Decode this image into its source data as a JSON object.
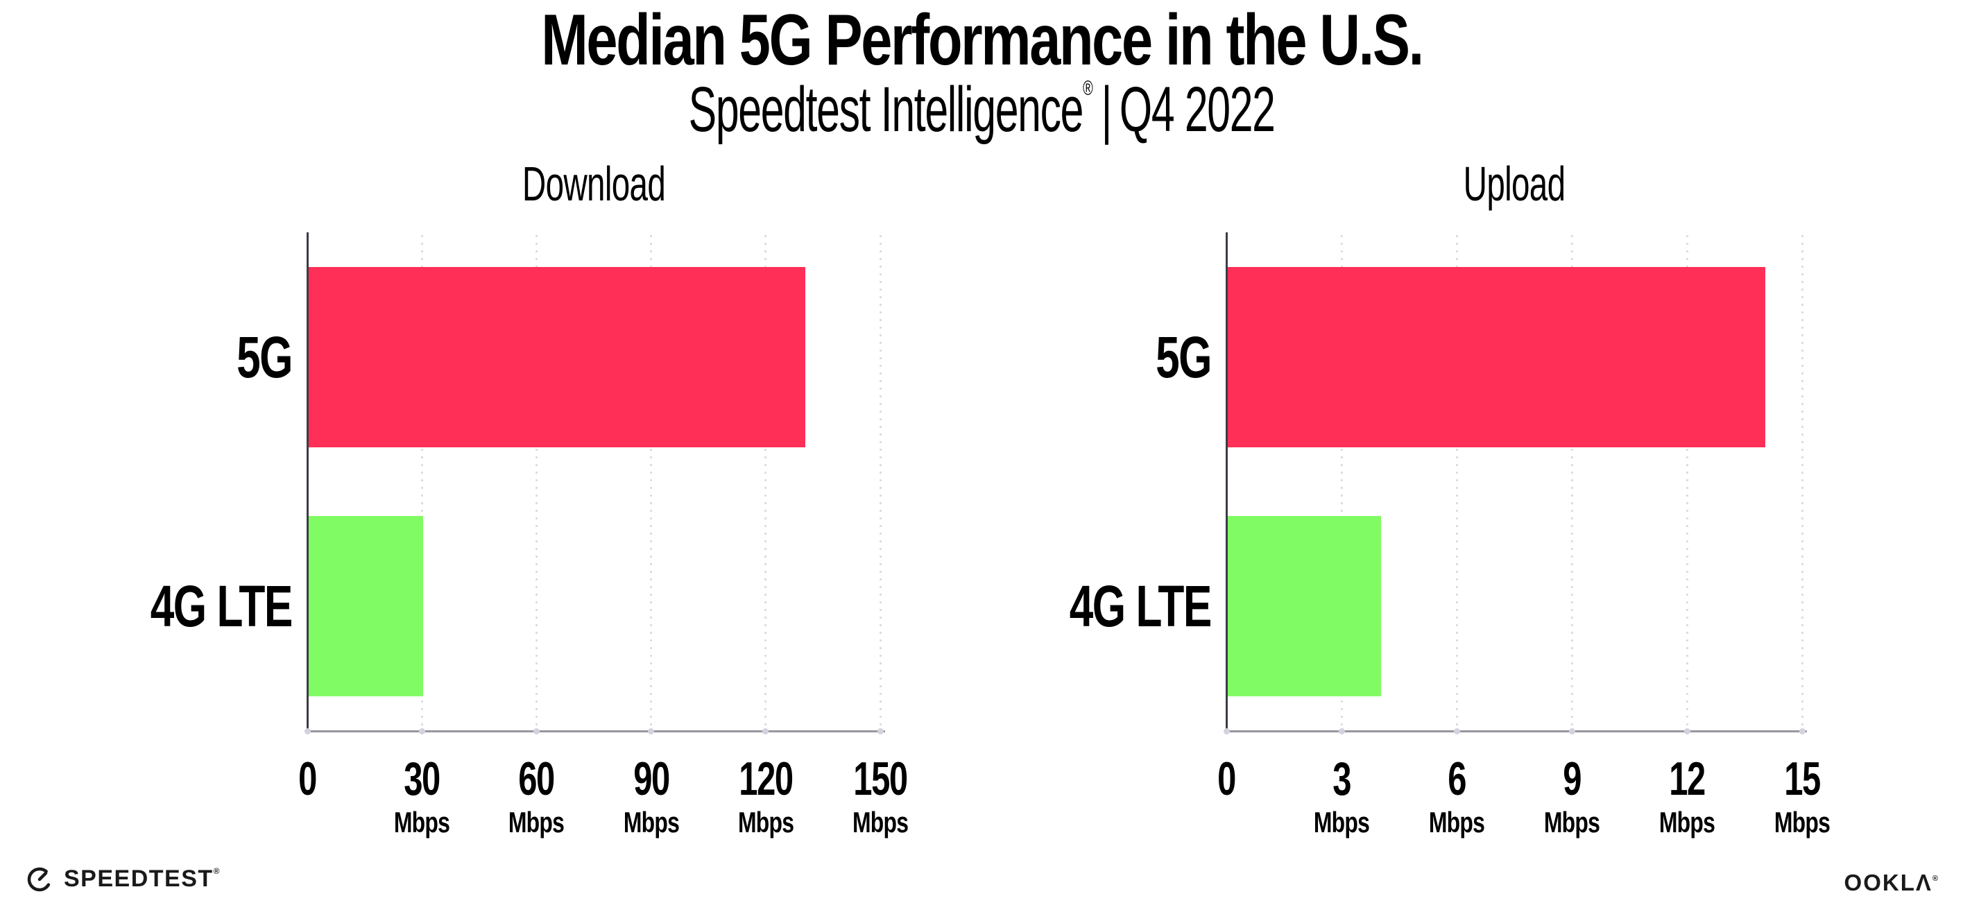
{
  "header": {
    "title": "Median 5G Performance in the U.S.",
    "subtitle_brand": "Speedtest Intelligence",
    "subtitle_mark": "®",
    "subtitle_separator": "|",
    "subtitle_period": "Q4 2022"
  },
  "footer": {
    "speedtest_logo_text": "SPEEDTEST",
    "speedtest_mark": "®",
    "speedtest_icon": "gauge-icon",
    "ookla_logo_text": "OOKLΛ",
    "ookla_mark": "®"
  },
  "colors": {
    "bar_5g": "#ff2f57",
    "bar_4g_lte": "#81fb63",
    "y_axis": "#3c3c45",
    "x_axis": "#97979d",
    "grid_dot": "#d9d9e4",
    "tick_dot": "#d3d3df",
    "text": "#000000"
  },
  "chart_data": [
    {
      "type": "bar",
      "orientation": "horizontal",
      "title": "Download",
      "categories": [
        "5G",
        "4G LTE"
      ],
      "values": [
        130,
        30
      ],
      "unit": "Mbps",
      "xlim": [
        0,
        150
      ],
      "xticks": [
        0,
        30,
        60,
        90,
        120,
        150
      ],
      "bar_colors": [
        "#ff2f57",
        "#81fb63"
      ],
      "grid": "vertical-dotted",
      "legend": "none"
    },
    {
      "type": "bar",
      "orientation": "horizontal",
      "title": "Upload",
      "categories": [
        "5G",
        "4G LTE"
      ],
      "values": [
        14,
        4
      ],
      "unit": "Mbps",
      "xlim": [
        0,
        15
      ],
      "xticks": [
        0,
        3,
        6,
        9,
        12,
        15
      ],
      "bar_colors": [
        "#ff2f57",
        "#81fb63"
      ],
      "grid": "vertical-dotted",
      "legend": "none"
    }
  ]
}
